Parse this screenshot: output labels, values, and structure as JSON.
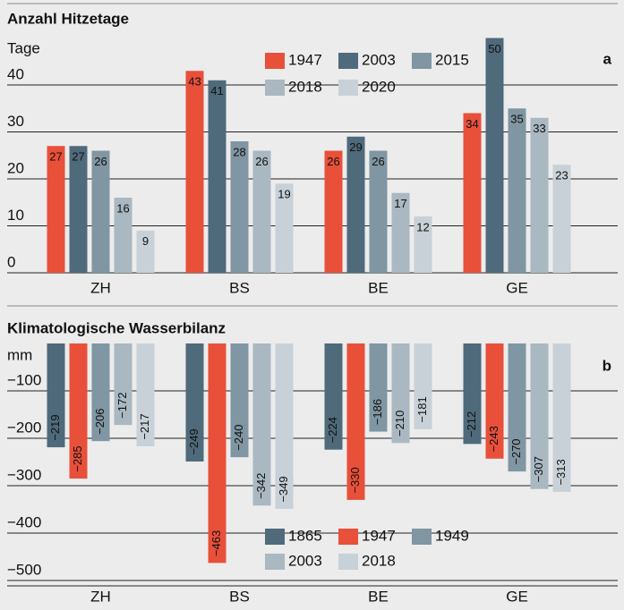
{
  "chart_data": [
    {
      "type": "bar",
      "title": "Anzahl Hitzetage",
      "y_label": "Tage",
      "panel": "a",
      "categories": [
        "ZH",
        "BS",
        "BE",
        "GE"
      ],
      "series": [
        {
          "name": "1947",
          "color": "#e8503a",
          "values": [
            27,
            43,
            26,
            34
          ]
        },
        {
          "name": "2003",
          "color": "#4f6a7a",
          "values": [
            27,
            41,
            29,
            50
          ]
        },
        {
          "name": "2015",
          "color": "#8096a2",
          "values": [
            26,
            28,
            26,
            35
          ]
        },
        {
          "name": "2018",
          "color": "#a9b8c1",
          "values": [
            16,
            26,
            17,
            33
          ]
        },
        {
          "name": "2020",
          "color": "#c8d1d7",
          "values": [
            9,
            19,
            12,
            23
          ]
        }
      ],
      "ylim": [
        0,
        50
      ],
      "yticks": [
        0,
        10,
        20,
        30,
        40
      ],
      "grid": true
    },
    {
      "type": "bar",
      "title": "Klimatologische Wasserbilanz",
      "y_label": "mm",
      "panel": "b",
      "categories": [
        "ZH",
        "BS",
        "BE",
        "GE"
      ],
      "series": [
        {
          "name": "1865",
          "color": "#4f6a7a",
          "values": [
            -219,
            -249,
            -224,
            -212
          ],
          "value_labels": [
            "−219",
            "−249",
            "−224",
            "−212"
          ]
        },
        {
          "name": "1947",
          "color": "#e8503a",
          "values": [
            -285,
            -463,
            -330,
            -243
          ],
          "value_labels": [
            "−285",
            "−463",
            "−330",
            "−243"
          ]
        },
        {
          "name": "1949",
          "color": "#8096a2",
          "values": [
            -206,
            -240,
            -186,
            -270
          ],
          "value_labels": [
            "−206",
            "−240",
            "−186",
            "−270"
          ]
        },
        {
          "name": "2003",
          "color": "#a9b8c1",
          "values": [
            -172,
            -342,
            -210,
            -307
          ],
          "value_labels": [
            "−172",
            "−342",
            "−210",
            "−307"
          ]
        },
        {
          "name": "2018",
          "color": "#c8d1d7",
          "values": [
            -217,
            -349,
            -181,
            -313
          ],
          "value_labels": [
            "−217",
            "−349",
            "−181",
            "−313"
          ]
        }
      ],
      "ylim": [
        -500,
        0
      ],
      "yticks": [
        {
          "value": -100,
          "label": "−100"
        },
        {
          "value": -200,
          "label": "−200"
        },
        {
          "value": -300,
          "label": "−300"
        },
        {
          "value": -400,
          "label": "−400"
        },
        {
          "value": -500,
          "label": "−500"
        }
      ],
      "grid": true
    }
  ]
}
